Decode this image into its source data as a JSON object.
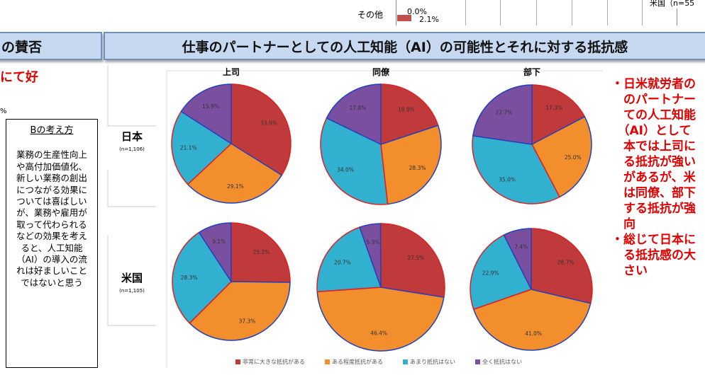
{
  "top_fragment": {
    "category": "その他",
    "value_a": "0.0%",
    "value_b": "2.1%",
    "legend_fragment": "米国（n=55"
  },
  "left_header": "の賛否",
  "left_red_text": "にて好",
  "left_percent_fragment": "%",
  "b_box": {
    "title": "Bの考え方",
    "body": "業務の生産性向上や高付加価値化、新しい業務の創出につながる効果については喜ばしいが、業務や雇用が取って代わられるなどの効果を考えると、人工知能（AI）の導入の流れは好ましいことではないと思う"
  },
  "main_header": "仕事のパートナーとしての人工知能（AI）の可能性とそれに対する抵抗感",
  "right_text": "・日米就労者の\n　のパートナー\n　ての人工知能\n　（AI）として\n　本では上司に\n　る抵抗が強い\n　があるが、米\n　は同僚、部下\n　する抵抗が強\n　向\n・総じて日本に\n　る抵抗感の大\n　さい",
  "chart_data": {
    "type": "pie",
    "columns": [
      "上司",
      "同僚",
      "部下"
    ],
    "rows": [
      {
        "label": "日本",
        "n": "(n=1,106)"
      },
      {
        "label": "米国",
        "n": "(n=1,105)"
      }
    ],
    "legend": [
      "非常に大きな抵抗がある",
      "ある程度抵抗がある",
      "あまり抵抗はない",
      "全く抵抗はない"
    ],
    "colors": [
      "#c0393b",
      "#f28e2b",
      "#31b0d0",
      "#7b4fa0"
    ],
    "values": [
      [
        [
          33.9,
          29.1,
          21.1,
          15.9
        ],
        [
          19.9,
          28.3,
          34.0,
          17.8
        ],
        [
          17.3,
          25.0,
          35.0,
          22.7
        ]
      ],
      [
        [
          25.2,
          37.3,
          28.3,
          9.1
        ],
        [
          27.5,
          46.4,
          20.7,
          5.3
        ],
        [
          28.7,
          41.0,
          22.9,
          7.4
        ]
      ]
    ],
    "legend_placement": "bottom"
  }
}
